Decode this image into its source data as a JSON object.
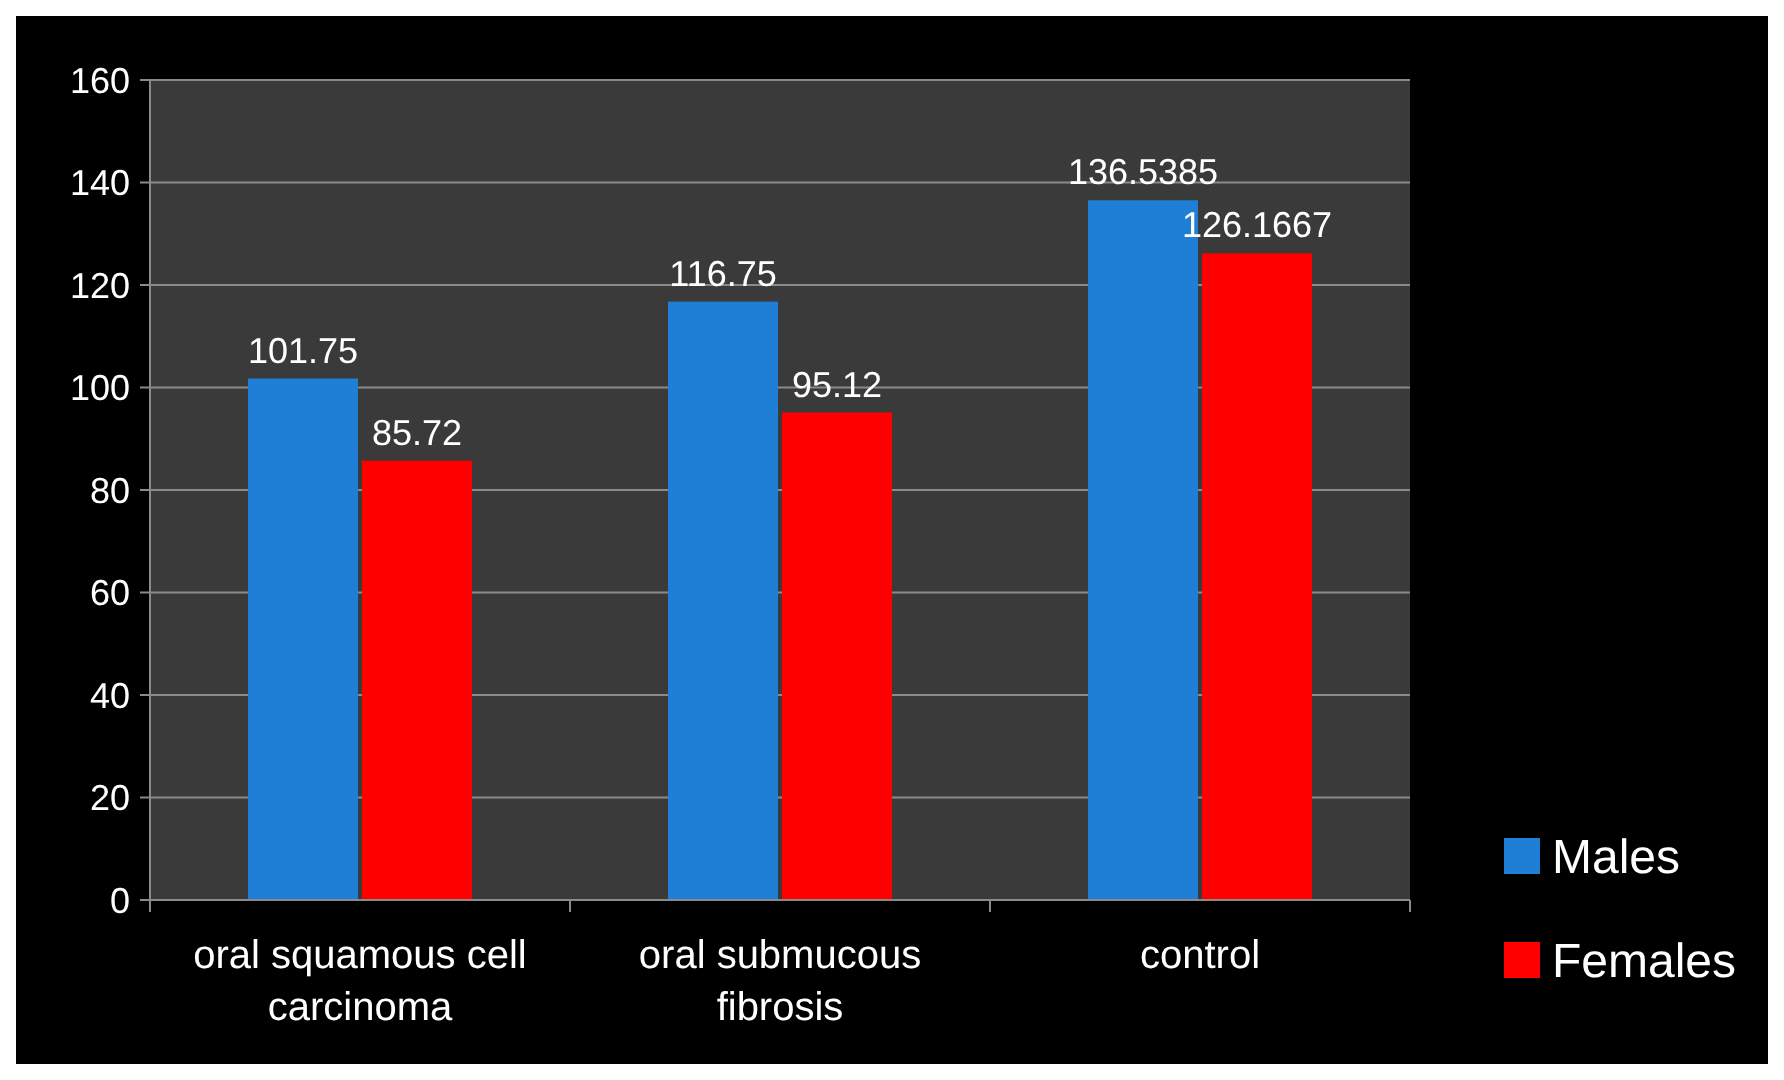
{
  "chart_data": {
    "type": "bar",
    "categories": [
      "oral squamous cell carcinoma",
      "oral submucous fibrosis",
      "control"
    ],
    "series": [
      {
        "name": "Males",
        "color": "#1f7fd6",
        "values": [
          101.75,
          116.75,
          136.5385
        ]
      },
      {
        "name": "Females",
        "color": "#ff0000",
        "values": [
          85.72,
          95.12,
          126.1667
        ]
      }
    ],
    "ylim": [
      0,
      160
    ],
    "yticks": [
      0,
      20,
      40,
      60,
      80,
      100,
      120,
      140,
      160
    ],
    "grid": "y",
    "legend": "bottom right",
    "data_labels": true
  }
}
